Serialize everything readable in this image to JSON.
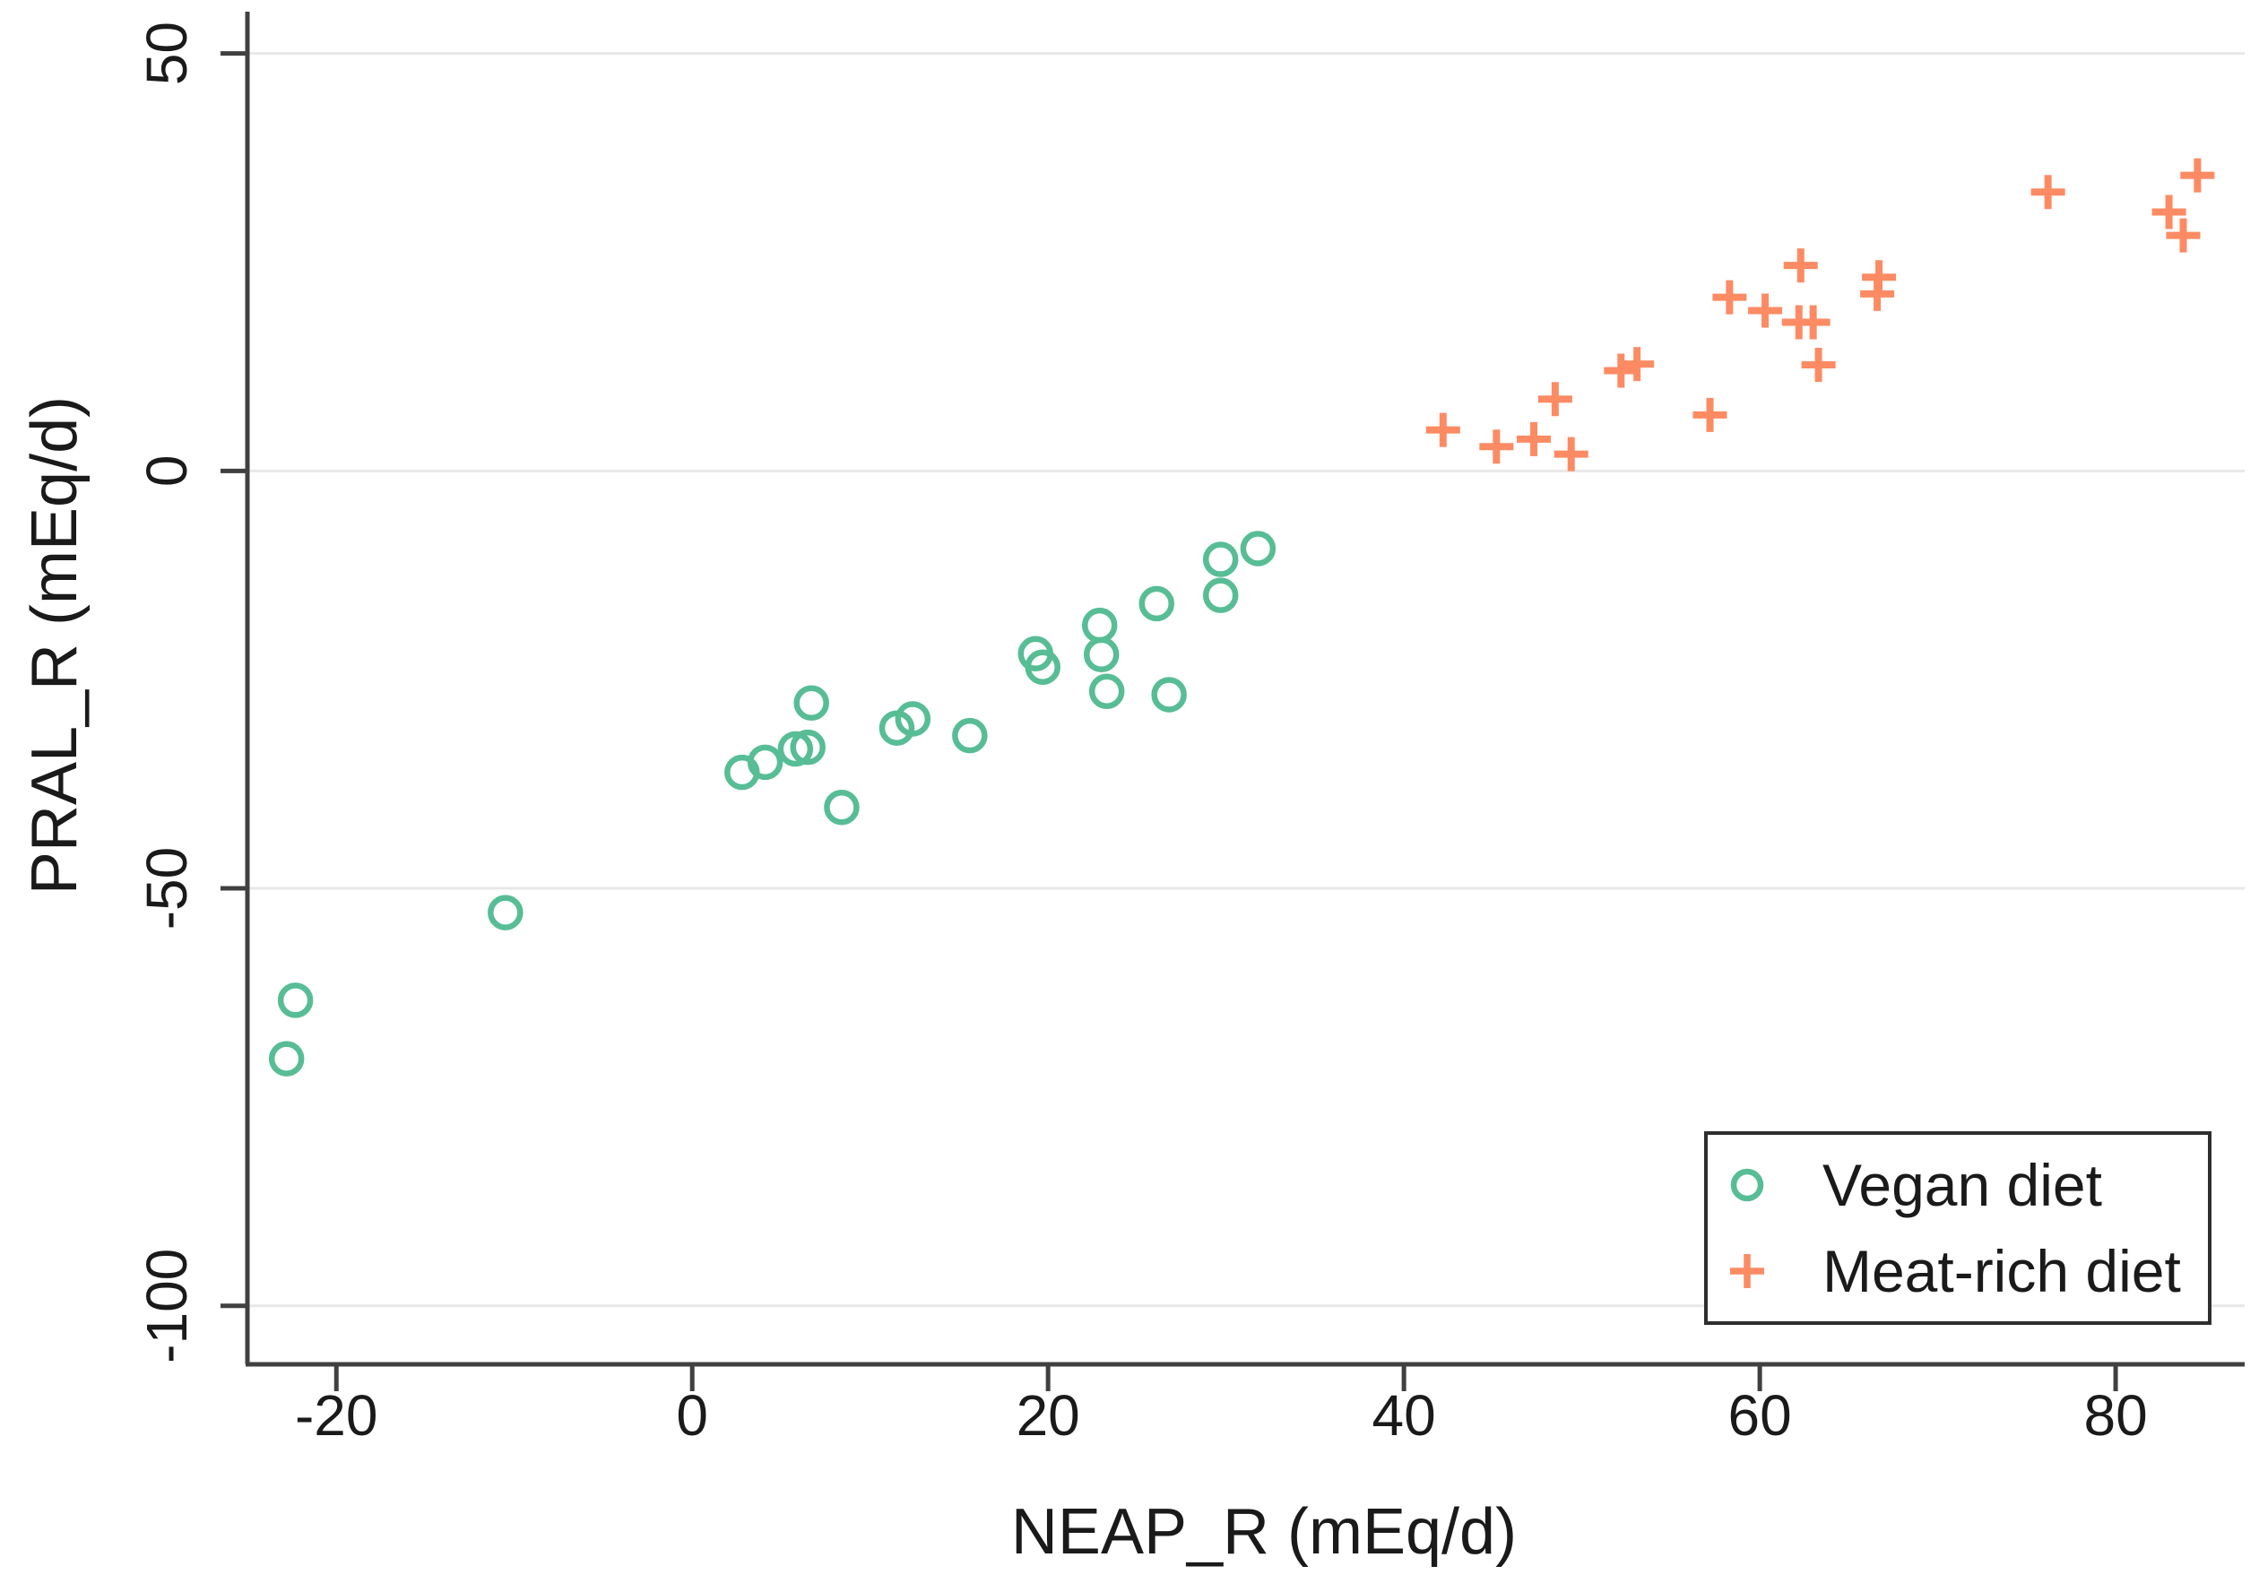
{
  "chart_data": {
    "type": "scatter",
    "title": "",
    "xlabel": "NEAP_R (mEq/d)",
    "ylabel": "PRAL_R (mEq/d)",
    "xlim": [
      -25,
      87
    ],
    "ylim": [
      -107,
      55
    ],
    "x_ticks": [
      -20,
      0,
      20,
      40,
      60,
      80
    ],
    "y_ticks": [
      50,
      0,
      -50,
      -100
    ],
    "grid": "horizontal-only",
    "legend_position": "bottom-right",
    "series": [
      {
        "name": "Vegan diet",
        "marker": "circle",
        "color": "#57bd95",
        "points": [
          [
            -22.8,
            -70.4
          ],
          [
            -22.3,
            -63.4
          ],
          [
            -10.5,
            -52.9
          ],
          [
            2.8,
            -36.1
          ],
          [
            4.1,
            -34.9
          ],
          [
            5.8,
            -33.3
          ],
          [
            6.5,
            -33.1
          ],
          [
            6.7,
            -27.8
          ],
          [
            8.4,
            -40.3
          ],
          [
            11.5,
            -30.8
          ],
          [
            12.4,
            -29.7
          ],
          [
            15.6,
            -31.7
          ],
          [
            19.3,
            -21.9
          ],
          [
            19.7,
            -23.5
          ],
          [
            22.9,
            -18.5
          ],
          [
            23.0,
            -22.0
          ],
          [
            23.3,
            -26.4
          ],
          [
            26.1,
            -15.9
          ],
          [
            26.8,
            -26.8
          ],
          [
            29.7,
            -10.6
          ],
          [
            29.7,
            -14.9
          ],
          [
            31.8,
            -9.3
          ]
        ]
      },
      {
        "name": "Meat-rich diet",
        "marker": "plus",
        "color": "#fc8b63",
        "points": [
          [
            42.2,
            4.9
          ],
          [
            45.2,
            2.9
          ],
          [
            47.3,
            3.8
          ],
          [
            48.5,
            8.6
          ],
          [
            49.4,
            2.0
          ],
          [
            52.2,
            12.0
          ],
          [
            53.1,
            12.8
          ],
          [
            57.2,
            6.7
          ],
          [
            58.3,
            20.8
          ],
          [
            60.3,
            19.2
          ],
          [
            62.2,
            17.8
          ],
          [
            62.3,
            24.6
          ],
          [
            63.0,
            17.8
          ],
          [
            63.3,
            12.7
          ],
          [
            66.6,
            21.2
          ],
          [
            66.7,
            23.2
          ],
          [
            76.2,
            33.4
          ],
          [
            83.0,
            31.0
          ],
          [
            83.8,
            28.2
          ],
          [
            84.6,
            35.4
          ]
        ]
      }
    ],
    "colors": {
      "axis": "#404040",
      "gridline": "#e8e8e8",
      "text": "#1a1a1a",
      "legend_border": "#2e2e2e",
      "background": "#ffffff"
    }
  }
}
